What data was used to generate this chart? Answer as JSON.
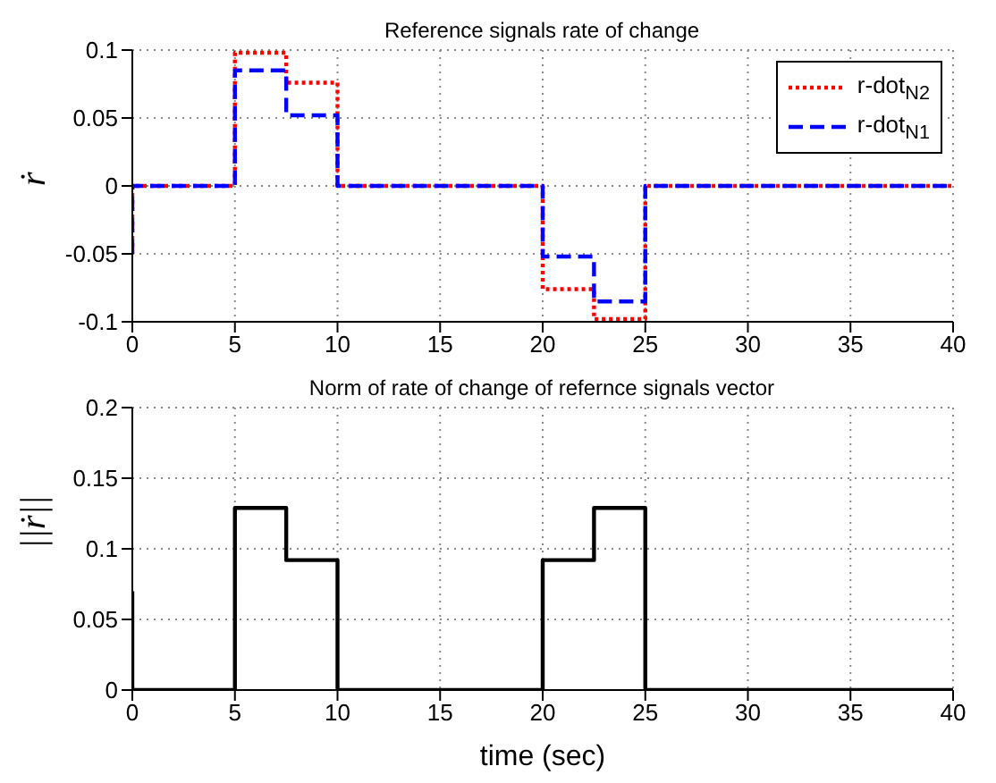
{
  "chart_data": [
    {
      "type": "line",
      "title": "Reference signals rate of change",
      "ylabel": "ṙ",
      "xlim": [
        0,
        40
      ],
      "xticks": [
        0,
        5,
        10,
        15,
        20,
        25,
        30,
        35,
        40
      ],
      "ylim": [
        -0.1,
        0.1
      ],
      "yticks": [
        -0.1,
        -0.05,
        0,
        0.05,
        0.1
      ],
      "grid": true,
      "legend": "top right",
      "marker": "none",
      "series": [
        {
          "name": "r-dot$_{N2}$",
          "color": "#ff0000",
          "line_style": "dotted",
          "x": [
            0,
            0,
            5,
            5,
            7.5,
            7.5,
            10,
            10,
            20,
            20,
            22.5,
            22.5,
            25,
            25,
            40
          ],
          "values": [
            -0.05,
            0,
            0,
            0.098,
            0.098,
            0.076,
            0.076,
            0,
            0,
            -0.076,
            -0.076,
            -0.098,
            -0.098,
            0,
            0
          ]
        },
        {
          "name": "r-dot$_{N1}$",
          "color": "#0000ff",
          "line_style": "dashed",
          "x": [
            0,
            0,
            5,
            5,
            7.5,
            7.5,
            10,
            10,
            20,
            20,
            22.5,
            22.5,
            25,
            25,
            40
          ],
          "values": [
            -0.05,
            0,
            0,
            0.085,
            0.085,
            0.052,
            0.052,
            0,
            0,
            -0.052,
            -0.052,
            -0.085,
            -0.085,
            0,
            0
          ]
        }
      ]
    },
    {
      "type": "line",
      "title": "Norm of rate of change of refernce signals vector",
      "xlabel": "time (sec)",
      "ylabel": "||ṙ||",
      "xlim": [
        0,
        40
      ],
      "xticks": [
        0,
        5,
        10,
        15,
        20,
        25,
        30,
        35,
        40
      ],
      "ylim": [
        0,
        0.2
      ],
      "yticks": [
        0,
        0.05,
        0.1,
        0.15,
        0.2
      ],
      "grid": true,
      "marker": "none",
      "series": [
        {
          "color": "#000000",
          "line_style": "solid",
          "x": [
            0,
            0,
            5,
            5,
            7.5,
            7.5,
            10,
            10,
            20,
            20,
            22.5,
            22.5,
            25,
            25,
            40
          ],
          "values": [
            0.07,
            0,
            0,
            0.129,
            0.129,
            0.092,
            0.092,
            0,
            0,
            0.092,
            0.092,
            0.129,
            0.129,
            0,
            0
          ]
        }
      ]
    }
  ]
}
